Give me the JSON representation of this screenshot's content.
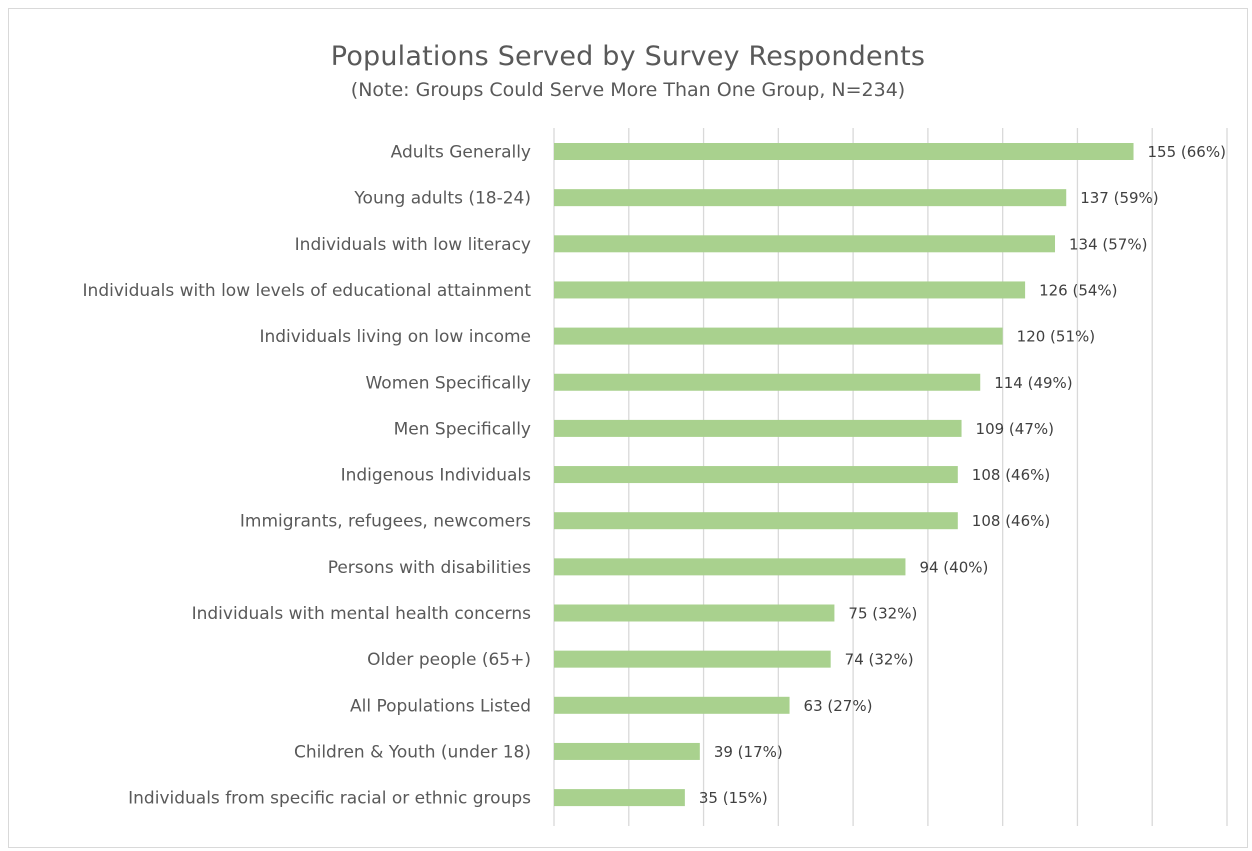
{
  "chart_data": {
    "type": "bar",
    "orientation": "horizontal",
    "title": "Populations Served by Survey Respondents",
    "subtitle": "(Note: Groups Could Serve More Than One Group, N=234)",
    "xlabel": "",
    "ylabel": "",
    "xlim": [
      0,
      180
    ],
    "grid": true,
    "legend": "none",
    "bar_color": "#a9d18e",
    "gridline_color": "#d9d9d9",
    "categories": [
      "Adults Generally",
      "Young adults (18-24)",
      "Individuals with low literacy",
      "Individuals with low levels of educational attainment",
      "Individuals living on low income",
      "Women Specifically",
      "Men Specifically",
      "Indigenous Individuals",
      "Immigrants, refugees, newcomers",
      "Persons with disabilities",
      "Individuals with mental health concerns",
      "Older people (65+)",
      "All Populations Listed",
      "Children & Youth (under 18)",
      "Individuals from specific racial or ethnic groups"
    ],
    "values": [
      155,
      137,
      134,
      126,
      120,
      114,
      109,
      108,
      108,
      94,
      75,
      74,
      63,
      39,
      35
    ],
    "data_labels": [
      "155 (66%)",
      "137 (59%)",
      "134 (57%)",
      "126 (54%)",
      "120 (51%)",
      "114 (49%)",
      "109 (47%)",
      "108 (46%)",
      "108 (46%)",
      "94 (40%)",
      "75 (32%)",
      "74 (32%)",
      "63 (27%)",
      "39 (17%)",
      "35 (15%)"
    ]
  }
}
